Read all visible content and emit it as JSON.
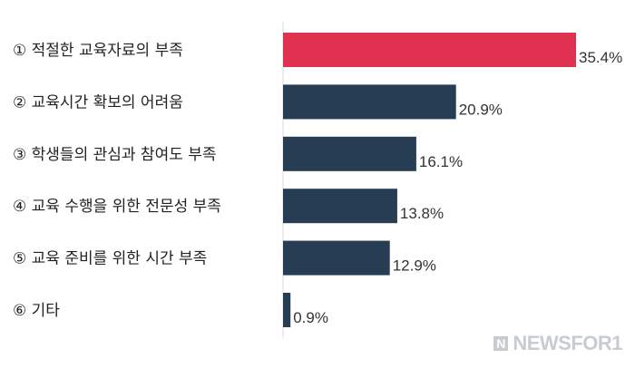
{
  "chart_data": {
    "type": "bar",
    "orientation": "horizontal",
    "categories": [
      "① 적절한 교육자료의 부족",
      "② 교육시간 확보의 어려움",
      "③ 학생들의 관심과 참여도 부족",
      "④ 교육 수행을 위한 전문성 부족",
      "⑤ 교육 준비를 위한 시간 부족",
      "⑥ 기타"
    ],
    "values": [
      35.4,
      20.9,
      16.1,
      13.8,
      12.9,
      0.9
    ],
    "value_labels": [
      "35.4%",
      "20.9%",
      "16.1%",
      "13.8%",
      "12.9%",
      "0.9%"
    ],
    "unit": "%",
    "xlim": [
      0,
      35.4
    ],
    "colors": {
      "highlight": "#e03250",
      "default": "#263d54"
    },
    "highlight_index": 0,
    "grid": false
  },
  "watermark": {
    "logo_letter": "N",
    "text": "NEWSFOR1"
  }
}
